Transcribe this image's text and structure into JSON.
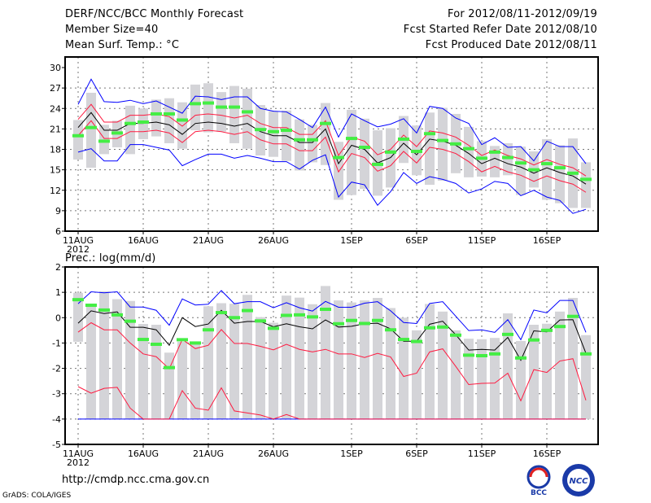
{
  "header": {
    "title": "DERF/NCC/BCC Monthly Forecast",
    "member_size": "Member Size=40",
    "variable": "Mean Surf. Temp.: °C",
    "period": "For 2012/08/11-2012/09/19",
    "started": "Fcst Started Refer Date 2012/08/10",
    "produced": "Fcst Produced Date 2012/08/11"
  },
  "footer": {
    "url": "http://cmdp.ncc.cma.gov.cn",
    "credit": "GrADS: COLA/IGES",
    "logo_bcc": "BCC",
    "logo_ncc": "NCC"
  },
  "colors": {
    "mean": "#000000",
    "spread": "#ff1a40",
    "extreme": "#0000ff",
    "obs": "#44ee44",
    "box": "#d4d4d8"
  },
  "chart_data": [
    {
      "type": "line",
      "title": "Mean Surf. Temp.: °C",
      "ylim": [
        6,
        30
      ],
      "yticks": [
        6,
        9,
        12,
        15,
        18,
        21,
        24,
        27,
        30
      ],
      "xtick_labels": [
        {
          "day": 0,
          "label": "11AUG",
          "sub": "2012"
        },
        {
          "day": 5,
          "label": "16AUG"
        },
        {
          "day": 10,
          "label": "21AUG"
        },
        {
          "day": 15,
          "label": "26AUG"
        },
        {
          "day": 21,
          "label": "1SEP"
        },
        {
          "day": 26,
          "label": "6SEP"
        },
        {
          "day": 31,
          "label": "11SEP"
        },
        {
          "day": 36,
          "label": "16SEP"
        }
      ],
      "grid": true,
      "days": 40,
      "box_hi": [
        22.3,
        26.3,
        21.6,
        22.2,
        24.4,
        24.0,
        25.3,
        25.5,
        24.9,
        27.5,
        27.7,
        26.4,
        27.3,
        26.9,
        24.5,
        23.6,
        23.7,
        22.4,
        21.6,
        24.8,
        19.1,
        23.8,
        22.5,
        20.8,
        21.1,
        22.9,
        21.5,
        23.4,
        24.1,
        23.2,
        21.3,
        19.2,
        18.5,
        18.9,
        18.4,
        17.7,
        19.5,
        18.6,
        19.6,
        16.1
      ],
      "box_lo": [
        16.5,
        15.3,
        17.3,
        18.3,
        17.3,
        19.5,
        19.9,
        18.9,
        18.1,
        20.8,
        20.5,
        20.6,
        18.9,
        18.1,
        17.1,
        16.9,
        16.3,
        14.9,
        16.1,
        15.7,
        10.6,
        11.3,
        12.2,
        11.2,
        12.4,
        16.0,
        14.2,
        12.8,
        13.4,
        14.5,
        13.9,
        14.0,
        13.9,
        14.2,
        11.3,
        12.4,
        10.6,
        10.1,
        9.4,
        9.4
      ],
      "series": [
        {
          "name": "max",
          "color": "extreme",
          "values": [
            24.6,
            28.3,
            25.0,
            24.9,
            25.2,
            24.7,
            25.1,
            24.2,
            23.3,
            25.8,
            25.7,
            25.3,
            25.7,
            25.7,
            24.0,
            23.6,
            23.5,
            22.4,
            21.2,
            24.2,
            19.8,
            23.2,
            22.2,
            21.3,
            21.7,
            22.5,
            20.4,
            24.3,
            24.0,
            22.6,
            21.8,
            18.7,
            19.7,
            18.3,
            18.4,
            16.3,
            19.2,
            18.4,
            18.4,
            15.9
          ]
        },
        {
          "name": "min",
          "color": "extreme",
          "values": [
            17.6,
            18.1,
            16.3,
            16.3,
            18.7,
            18.7,
            18.3,
            17.9,
            15.6,
            16.5,
            17.3,
            17.3,
            16.7,
            17.1,
            16.7,
            16.2,
            16.2,
            15.1,
            16.4,
            17.2,
            11.0,
            13.2,
            12.8,
            9.8,
            11.8,
            14.6,
            13.0,
            14.0,
            13.6,
            13.0,
            11.6,
            12.2,
            13.3,
            13.0,
            11.2,
            12.0,
            11.0,
            10.5,
            8.6,
            9.2
          ]
        },
        {
          "name": "upper",
          "color": "spread",
          "values": [
            22.4,
            24.6,
            22.0,
            22.0,
            23.0,
            23.0,
            23.2,
            22.8,
            21.4,
            23.0,
            23.2,
            23.0,
            22.6,
            23.0,
            21.8,
            21.2,
            21.2,
            20.2,
            20.2,
            22.2,
            17.1,
            19.8,
            19.2,
            17.2,
            18.0,
            20.1,
            18.4,
            20.7,
            20.4,
            19.8,
            18.6,
            17.1,
            17.9,
            17.1,
            16.6,
            15.7,
            16.5,
            15.8,
            15.3,
            14.1
          ]
        },
        {
          "name": "lower",
          "color": "spread",
          "values": [
            20.0,
            22.2,
            19.6,
            19.6,
            20.6,
            20.6,
            20.8,
            20.4,
            19.0,
            20.6,
            20.8,
            20.6,
            20.2,
            20.6,
            19.4,
            18.8,
            18.8,
            17.8,
            17.8,
            19.8,
            14.7,
            17.4,
            16.8,
            14.8,
            15.6,
            17.7,
            16.0,
            18.3,
            18.0,
            17.4,
            16.2,
            14.7,
            15.5,
            14.7,
            14.2,
            13.3,
            14.1,
            13.4,
            12.9,
            11.7
          ]
        },
        {
          "name": "mean",
          "color": "mean",
          "values": [
            21.2,
            23.4,
            20.8,
            20.8,
            21.8,
            21.8,
            22.0,
            21.6,
            20.2,
            21.8,
            22.0,
            21.8,
            21.4,
            21.8,
            20.6,
            20.0,
            20.0,
            19.0,
            19.0,
            21.0,
            15.9,
            18.6,
            18.0,
            16.0,
            16.8,
            18.9,
            17.2,
            19.5,
            19.2,
            18.6,
            17.4,
            15.9,
            16.7,
            15.9,
            15.4,
            14.5,
            15.3,
            14.6,
            14.1,
            12.9
          ]
        }
      ],
      "obs": [
        20.0,
        21.2,
        19.2,
        20.4,
        21.8,
        22.0,
        23.2,
        23.2,
        22.3,
        24.7,
        24.8,
        24.2,
        24.2,
        23.5,
        20.9,
        20.6,
        20.8,
        19.4,
        19.4,
        21.8,
        16.8,
        19.6,
        18.3,
        15.8,
        17.6,
        19.5,
        17.7,
        20.3,
        19.3,
        18.8,
        18.1,
        16.7,
        17.6,
        16.8,
        16.0,
        15.0,
        15.9,
        15.3,
        14.5,
        13.6
      ]
    },
    {
      "type": "line",
      "title": "Prec.: log(mm/d)",
      "ylim": [
        -5,
        2
      ],
      "yticks": [
        -5,
        -4,
        -3,
        -2,
        -1,
        0,
        1,
        2
      ],
      "xtick_labels": [
        {
          "day": 0,
          "label": "11AUG",
          "sub": "2012"
        },
        {
          "day": 5,
          "label": "16AUG"
        },
        {
          "day": 10,
          "label": "21AUG"
        },
        {
          "day": 15,
          "label": "26AUG"
        },
        {
          "day": 21,
          "label": "1SEP"
        },
        {
          "day": 26,
          "label": "6SEP"
        },
        {
          "day": 31,
          "label": "11SEP"
        },
        {
          "day": 36,
          "label": "16SEP"
        }
      ],
      "grid": true,
      "days": 40,
      "box_hi": [
        0.98,
        0.55,
        1.04,
        0.73,
        0.66,
        -0.25,
        -0.28,
        -1.38,
        -0.95,
        -1.05,
        0.45,
        0.57,
        0.55,
        0.9,
        0.02,
        -0.2,
        0.87,
        0.79,
        0.53,
        1.25,
        0.68,
        0.6,
        0.68,
        0.78,
        0.38,
        0.0,
        -0.5,
        0.54,
        0.24,
        -0.5,
        -0.83,
        -0.85,
        -0.8,
        0.17,
        -0.92,
        -0.28,
        -0.24,
        0.24,
        0.78,
        -0.69
      ],
      "box_lo": [
        -0.95,
        -4,
        -4,
        -4,
        -4,
        -4,
        -4,
        -4,
        -4,
        -4,
        -4,
        -4,
        -4,
        -4,
        -4,
        -4,
        -4,
        -4,
        -4,
        -4,
        -4,
        -4,
        -4,
        -4,
        -4,
        -4,
        -4,
        -4,
        -4,
        -4,
        -4,
        -4,
        -4,
        -4,
        -4,
        -4,
        -4,
        -4,
        -4,
        -4
      ],
      "series": [
        {
          "name": "min",
          "color": "extreme",
          "values": [
            -4,
            -4,
            -4,
            -4,
            -4,
            -4,
            -4,
            -4,
            -4,
            -4,
            -4,
            -4,
            -4,
            -4,
            -4,
            -4,
            -4,
            -4,
            -4,
            -4,
            -4,
            -4,
            -4,
            -4,
            -4,
            -4,
            -4,
            -4,
            -4,
            -4,
            -4,
            -4,
            -4,
            -4,
            -4,
            -4,
            -4,
            -4,
            -4,
            -4
          ]
        },
        {
          "name": "lower",
          "color": "spread",
          "values": [
            -2.72,
            -2.98,
            -2.79,
            -2.75,
            -3.57,
            -4,
            -4,
            -4,
            -2.88,
            -3.57,
            -3.65,
            -2.77,
            -3.68,
            -3.76,
            -3.84,
            -4,
            -3.82,
            -4,
            -4,
            -4,
            -4,
            -4,
            -4,
            -4,
            -4,
            -4,
            -4,
            -4,
            -4,
            -4,
            -4,
            -4,
            -4,
            -4,
            -4,
            -4,
            -4,
            -4,
            -4,
            -4
          ]
        },
        {
          "name": "max",
          "color": "extreme",
          "values": [
            0.55,
            1.02,
            0.98,
            1.02,
            0.42,
            0.42,
            0.29,
            -0.3,
            0.74,
            0.5,
            0.53,
            1.07,
            0.55,
            0.63,
            0.63,
            0.39,
            0.59,
            0.39,
            0.26,
            0.64,
            0.41,
            0.41,
            0.57,
            0.63,
            0.27,
            -0.19,
            -0.23,
            0.56,
            0.63,
            0.06,
            -0.51,
            -0.48,
            -0.58,
            -0.08,
            -0.87,
            0.3,
            0.19,
            0.68,
            0.68,
            -0.58
          ]
        },
        {
          "name": "upper",
          "color": "spread",
          "values": [
            -0.57,
            -0.2,
            -0.48,
            -0.48,
            -1.0,
            -1.43,
            -1.54,
            -2.02,
            -0.86,
            -1.22,
            -1.09,
            -0.47,
            -1.02,
            -1.02,
            -1.13,
            -1.27,
            -1.05,
            -1.25,
            -1.35,
            -1.25,
            -1.43,
            -1.43,
            -1.57,
            -1.41,
            -1.55,
            -2.32,
            -2.19,
            -1.35,
            -1.23,
            -1.92,
            -2.64,
            -2.59,
            -2.58,
            -2.19,
            -3.28,
            -2.05,
            -2.16,
            -1.71,
            -1.62,
            -3.26
          ]
        },
        {
          "name": "mean",
          "color": "mean",
          "values": [
            -0.22,
            0.27,
            0.16,
            0.23,
            -0.38,
            -0.38,
            -0.48,
            -1.09,
            0.0,
            -0.35,
            -0.25,
            0.29,
            -0.22,
            -0.15,
            -0.15,
            -0.36,
            -0.24,
            -0.36,
            -0.44,
            -0.09,
            -0.37,
            -0.34,
            -0.24,
            -0.22,
            -0.44,
            -0.93,
            -0.93,
            -0.26,
            -0.14,
            -0.67,
            -1.28,
            -1.25,
            -1.28,
            -0.78,
            -1.68,
            -0.52,
            -0.56,
            -0.09,
            -0.08,
            -1.4
          ]
        }
      ],
      "obs": [
        0.71,
        0.49,
        0.3,
        0.11,
        -0.14,
        -0.86,
        -1.05,
        -1.97,
        -0.87,
        -1.0,
        -0.48,
        0.2,
        0.0,
        0.28,
        -0.13,
        -0.42,
        0.09,
        0.11,
        0.03,
        0.33,
        -0.24,
        -0.11,
        -0.23,
        -0.11,
        -0.48,
        -0.86,
        -0.94,
        -0.4,
        -0.37,
        -0.69,
        -1.48,
        -1.5,
        -1.43,
        -0.66,
        -1.59,
        -0.88,
        -0.5,
        -0.35,
        0.05,
        -1.43
      ]
    }
  ]
}
